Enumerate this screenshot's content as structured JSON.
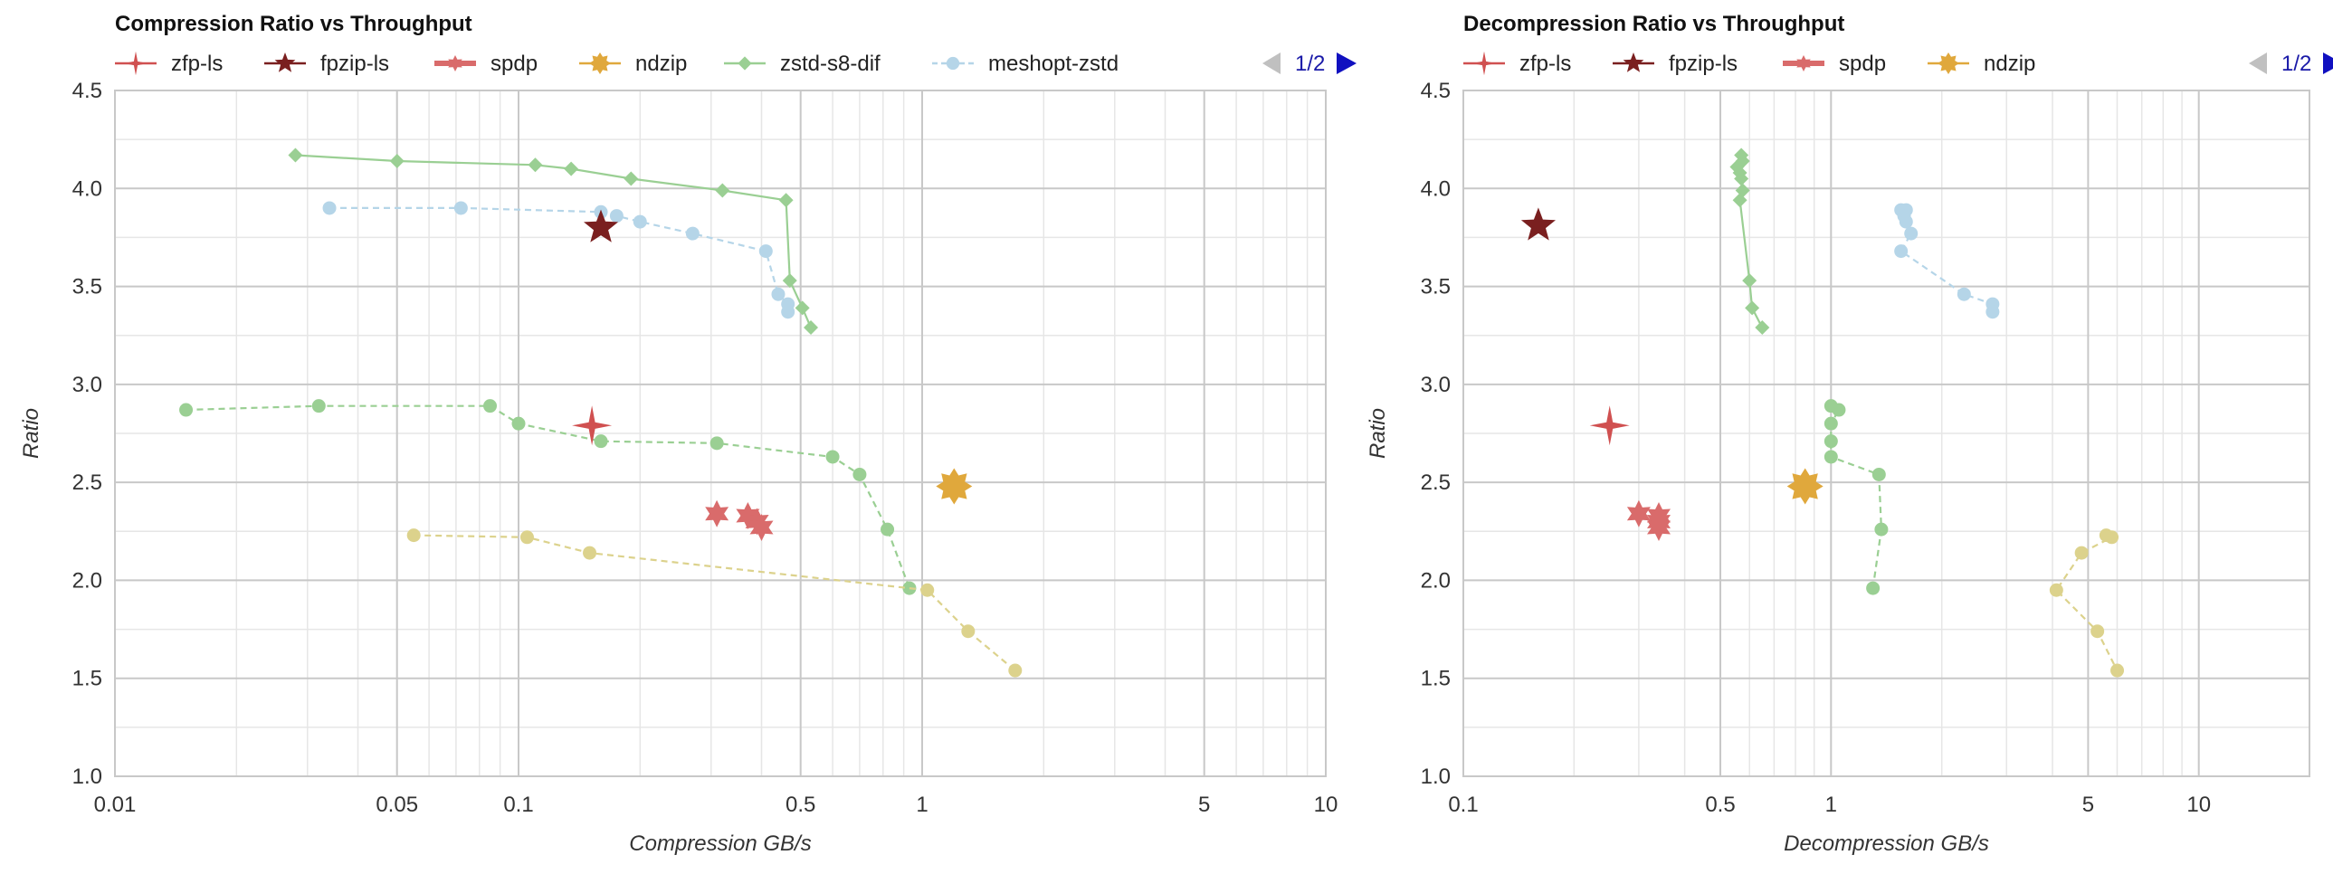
{
  "colors": {
    "zfp": "#d05050",
    "fpzip": "#7a1f1f",
    "spdp": "#d96b6b",
    "ndzip": "#e0a83c",
    "zstd": "#9acf93",
    "meshopt": "#b5d5e8",
    "yellow": "#dcd28c",
    "grid_major": "#c8c8c8",
    "grid_minor": "#e6e6e6",
    "pager_active": "#1010c0",
    "pager_inactive": "#c0c0c0"
  },
  "chart_data": [
    {
      "type": "scatter",
      "title": "Compression Ratio vs Throughput",
      "xlabel": "Compression GB/s",
      "ylabel": "Ratio",
      "xscale": "log",
      "xlim": [
        0.01,
        10
      ],
      "ylim": [
        1.0,
        4.5
      ],
      "xticks": [
        0.01,
        0.05,
        0.1,
        0.5,
        1,
        5,
        10
      ],
      "xtick_labels": [
        "0.01",
        "0.05",
        "0.1",
        "0.5",
        "1",
        "5",
        "10"
      ],
      "yticks": [
        1.0,
        1.5,
        2.0,
        2.5,
        3.0,
        3.5,
        4.0,
        4.5
      ],
      "ytick_labels": [
        "1.0",
        "1.5",
        "2.0",
        "2.5",
        "3.0",
        "3.5",
        "4.0",
        "4.5"
      ],
      "grid": true,
      "legend_position": "top",
      "pager": "1/2",
      "legend": [
        {
          "name": "zfp-ls",
          "marker": "star4",
          "line": "solid",
          "color_key": "zfp"
        },
        {
          "name": "fpzip-ls",
          "marker": "star5",
          "line": "solid",
          "color_key": "fpzip"
        },
        {
          "name": "spdp",
          "marker": "star6",
          "line": "solid",
          "color_key": "spdp"
        },
        {
          "name": "ndzip",
          "marker": "star8",
          "line": "solid",
          "color_key": "ndzip"
        },
        {
          "name": "zstd-s8-dif",
          "marker": "diamond",
          "line": "solid",
          "color_key": "zstd"
        },
        {
          "name": "meshopt-zstd",
          "marker": "circle",
          "line": "dashed",
          "color_key": "meshopt"
        }
      ],
      "series": [
        {
          "color_key": "zstd",
          "marker": "diamond",
          "line": "solid",
          "points": [
            [
              0.028,
              4.17
            ],
            [
              0.05,
              4.14
            ],
            [
              0.11,
              4.12
            ],
            [
              0.135,
              4.1
            ],
            [
              0.19,
              4.05
            ],
            [
              0.32,
              3.99
            ],
            [
              0.46,
              3.94
            ],
            [
              0.47,
              3.53
            ],
            [
              0.505,
              3.39
            ],
            [
              0.53,
              3.29
            ]
          ]
        },
        {
          "color_key": "meshopt",
          "marker": "circle",
          "line": "dashed",
          "points": [
            [
              0.034,
              3.9
            ],
            [
              0.072,
              3.9
            ],
            [
              0.16,
              3.88
            ],
            [
              0.175,
              3.86
            ],
            [
              0.2,
              3.83
            ],
            [
              0.27,
              3.77
            ],
            [
              0.41,
              3.68
            ],
            [
              0.44,
              3.46
            ],
            [
              0.465,
              3.41
            ],
            [
              0.465,
              3.37
            ]
          ]
        },
        {
          "color_key": "zstd",
          "marker": "circle",
          "line": "dashed",
          "points": [
            [
              0.015,
              2.87
            ],
            [
              0.032,
              2.89
            ],
            [
              0.085,
              2.89
            ],
            [
              0.1,
              2.8
            ],
            [
              0.16,
              2.71
            ],
            [
              0.31,
              2.7
            ],
            [
              0.6,
              2.63
            ],
            [
              0.7,
              2.54
            ],
            [
              0.82,
              2.26
            ],
            [
              0.93,
              1.96
            ]
          ]
        },
        {
          "color_key": "yellow",
          "marker": "circle",
          "line": "dashed",
          "points": [
            [
              0.055,
              2.23
            ],
            [
              0.105,
              2.22
            ],
            [
              0.15,
              2.14
            ],
            [
              1.03,
              1.95
            ],
            [
              1.3,
              1.74
            ],
            [
              1.7,
              1.54
            ]
          ]
        },
        {
          "color_key": "zfp",
          "marker": "star4",
          "line": "none",
          "points": [
            [
              0.152,
              2.79
            ]
          ]
        },
        {
          "color_key": "fpzip",
          "marker": "star5",
          "line": "none",
          "points": [
            [
              0.16,
              3.8
            ]
          ]
        },
        {
          "color_key": "spdp",
          "marker": "star6",
          "line": "none",
          "points": [
            [
              0.31,
              2.34
            ],
            [
              0.37,
              2.33
            ],
            [
              0.39,
              2.3
            ],
            [
              0.4,
              2.27
            ]
          ]
        },
        {
          "color_key": "ndzip",
          "marker": "star8",
          "line": "none",
          "points": [
            [
              1.2,
              2.48
            ]
          ]
        }
      ]
    },
    {
      "type": "scatter",
      "title": "Decompression Ratio vs Throughput",
      "xlabel": "Decompression GB/s",
      "ylabel": "Ratio",
      "xscale": "log",
      "xlim": [
        0.1,
        20
      ],
      "ylim": [
        1.0,
        4.5
      ],
      "xticks": [
        0.1,
        0.5,
        1,
        5,
        10
      ],
      "xtick_labels": [
        "0.1",
        "0.5",
        "1",
        "5",
        "10"
      ],
      "yticks": [
        1.0,
        1.5,
        2.0,
        2.5,
        3.0,
        3.5,
        4.0,
        4.5
      ],
      "ytick_labels": [
        "1.0",
        "1.5",
        "2.0",
        "2.5",
        "3.0",
        "3.5",
        "4.0",
        "4.5"
      ],
      "grid": true,
      "legend_position": "top",
      "pager": "1/2",
      "legend": [
        {
          "name": "zfp-ls",
          "marker": "star4",
          "line": "solid",
          "color_key": "zfp"
        },
        {
          "name": "fpzip-ls",
          "marker": "star5",
          "line": "solid",
          "color_key": "fpzip"
        },
        {
          "name": "spdp",
          "marker": "star6",
          "line": "solid",
          "color_key": "spdp"
        },
        {
          "name": "ndzip",
          "marker": "star8",
          "line": "solid",
          "color_key": "ndzip"
        }
      ],
      "series": [
        {
          "color_key": "zstd",
          "marker": "diamond",
          "line": "solid",
          "points": [
            [
              0.57,
              4.17
            ],
            [
              0.575,
              4.14
            ],
            [
              0.555,
              4.11
            ],
            [
              0.565,
              4.08
            ],
            [
              0.57,
              4.05
            ],
            [
              0.575,
              3.99
            ],
            [
              0.565,
              3.94
            ],
            [
              0.6,
              3.53
            ],
            [
              0.61,
              3.39
            ],
            [
              0.65,
              3.29
            ]
          ]
        },
        {
          "color_key": "meshopt",
          "marker": "circle",
          "line": "dashed",
          "points": [
            [
              1.55,
              3.89
            ],
            [
              1.6,
              3.89
            ],
            [
              1.58,
              3.86
            ],
            [
              1.6,
              3.83
            ],
            [
              1.65,
              3.77
            ],
            [
              1.55,
              3.68
            ],
            [
              2.3,
              3.46
            ],
            [
              2.75,
              3.41
            ],
            [
              2.75,
              3.37
            ]
          ]
        },
        {
          "color_key": "zstd",
          "marker": "circle",
          "line": "dashed",
          "points": [
            [
              1.0,
              2.89
            ],
            [
              1.05,
              2.87
            ],
            [
              1.0,
              2.8
            ],
            [
              1.0,
              2.71
            ],
            [
              1.0,
              2.63
            ],
            [
              1.35,
              2.54
            ],
            [
              1.37,
              2.26
            ],
            [
              1.3,
              1.96
            ]
          ]
        },
        {
          "color_key": "yellow",
          "marker": "circle",
          "line": "dashed",
          "points": [
            [
              5.6,
              2.23
            ],
            [
              5.8,
              2.22
            ],
            [
              4.8,
              2.14
            ],
            [
              4.1,
              1.95
            ],
            [
              5.3,
              1.74
            ],
            [
              6.0,
              1.54
            ]
          ]
        },
        {
          "color_key": "zfp",
          "marker": "star4",
          "line": "none",
          "points": [
            [
              0.25,
              2.79
            ]
          ]
        },
        {
          "color_key": "fpzip",
          "marker": "star5",
          "line": "none",
          "points": [
            [
              0.16,
              3.81
            ]
          ]
        },
        {
          "color_key": "spdp",
          "marker": "star6",
          "line": "none",
          "points": [
            [
              0.3,
              2.34
            ],
            [
              0.34,
              2.33
            ],
            [
              0.34,
              2.3
            ],
            [
              0.34,
              2.27
            ]
          ]
        },
        {
          "color_key": "ndzip",
          "marker": "star8",
          "line": "none",
          "points": [
            [
              0.85,
              2.48
            ]
          ]
        }
      ]
    }
  ]
}
